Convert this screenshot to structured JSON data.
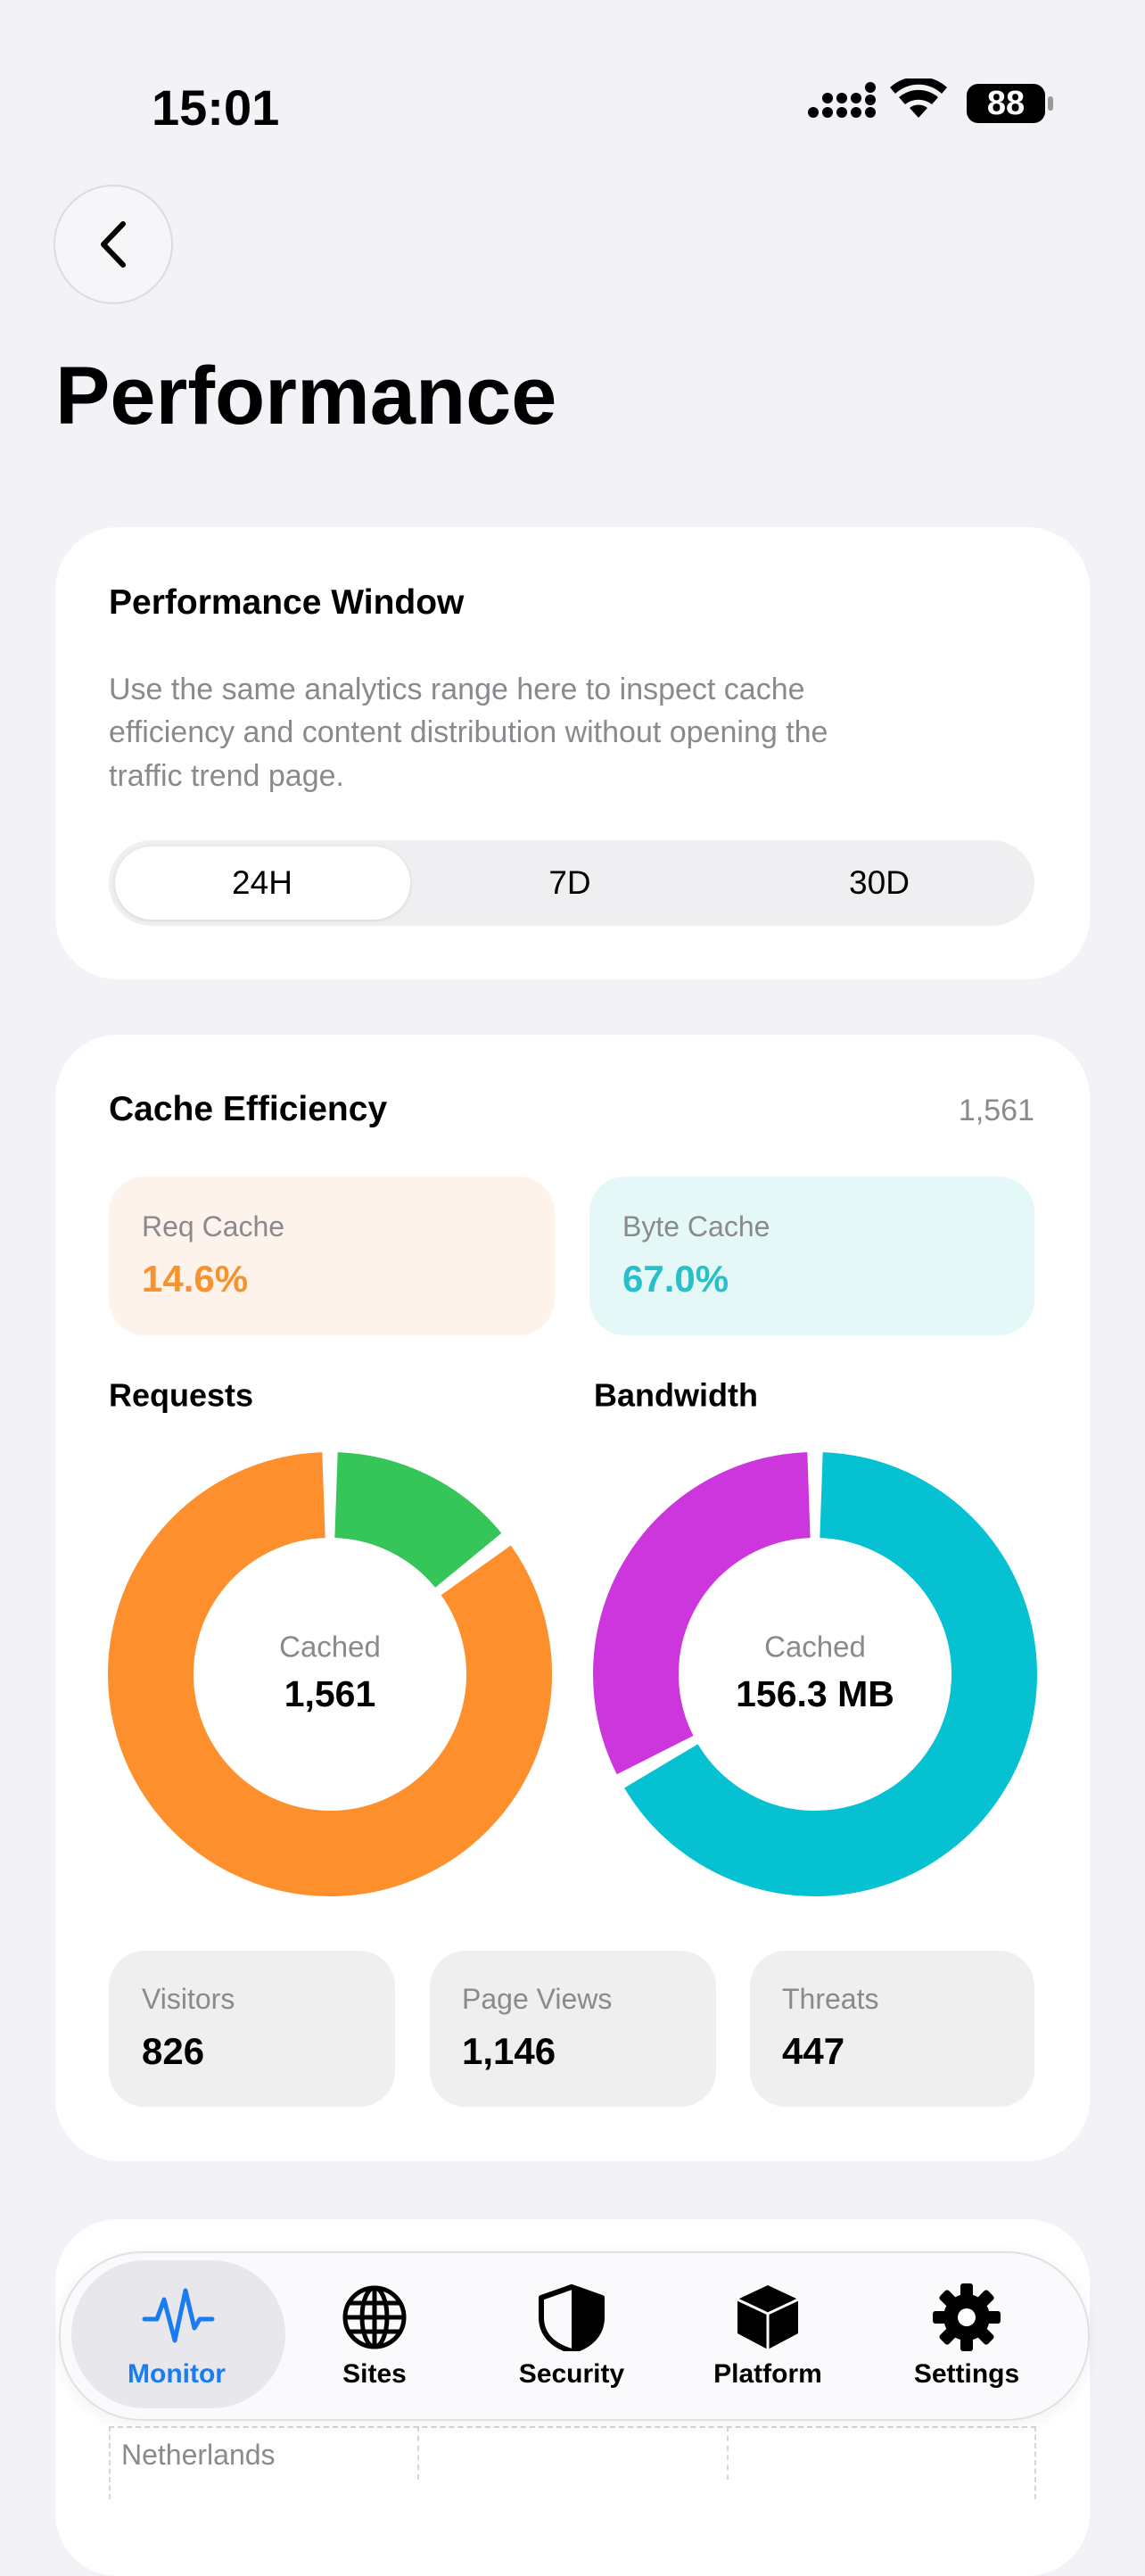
{
  "status_bar": {
    "time": "15:01",
    "battery": "88"
  },
  "header": {
    "title": "Performance"
  },
  "window_card": {
    "title": "Performance Window",
    "description": [
      "Use the same analytics range here to inspect cache",
      "efficiency and content distribution without opening the",
      "traffic trend page."
    ],
    "options": [
      "24H",
      "7D",
      "30D"
    ]
  },
  "cache_card": {
    "title": "Cache Efficiency",
    "total": "1,561",
    "req_cache": {
      "label": "Req Cache",
      "value": "14.6%"
    },
    "byte_cache": {
      "label": "Byte Cache",
      "value": "67.0%"
    },
    "stats": [
      {
        "label": "Visitors",
        "value": "826"
      },
      {
        "label": "Page Views",
        "value": "1,146"
      },
      {
        "label": "Threats",
        "value": "447"
      }
    ]
  },
  "chart_data": [
    {
      "type": "donut",
      "title": "Requests",
      "center_label": "Cached",
      "center_value": "1,561",
      "values": [
        14.6,
        85.4
      ],
      "colors": [
        "#36c558",
        "#fe8f2d"
      ]
    },
    {
      "type": "donut",
      "title": "Bandwidth",
      "center_label": "Cached",
      "center_value": "156.3 MB",
      "values": [
        67.0,
        33.0
      ],
      "colors": [
        "#05c1d1",
        "#cd36dc"
      ]
    }
  ],
  "table": {
    "rows": [
      [
        "Netherlands"
      ]
    ]
  },
  "tab_bar": {
    "tabs": [
      "Monitor",
      "Sites",
      "Security",
      "Platform",
      "Settings"
    ]
  }
}
